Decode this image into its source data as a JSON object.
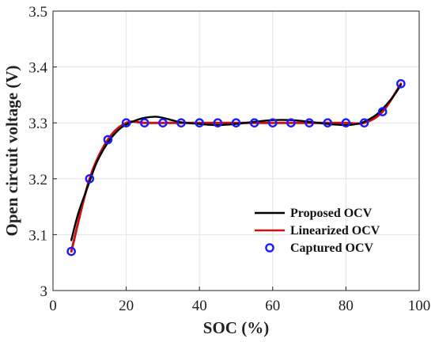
{
  "chart_data": {
    "type": "line",
    "xlabel": "SOC (%)",
    "ylabel": "Open circuit voltage (V)",
    "xlim": [
      0,
      100
    ],
    "ylim": [
      3.0,
      3.5
    ],
    "xticks": [
      0,
      20,
      40,
      60,
      80,
      100
    ],
    "yticks": [
      3,
      3.1,
      3.2,
      3.3,
      3.4,
      3.5
    ],
    "xtick_labels": [
      "0",
      "20",
      "40",
      "60",
      "80",
      "100"
    ],
    "ytick_labels": [
      "3",
      "3.1",
      "3.2",
      "3.3",
      "3.4",
      "3.5"
    ],
    "grid": true,
    "legend_position": "bottom-right",
    "series": [
      {
        "name": "Proposed OCV",
        "style": "line",
        "color": "#000000",
        "x": [
          5,
          7,
          10,
          12,
          15,
          18,
          20,
          22,
          25,
          28,
          30,
          33,
          35,
          40,
          45,
          50,
          55,
          60,
          65,
          70,
          75,
          80,
          83,
          85,
          88,
          90,
          93,
          95
        ],
        "y": [
          3.09,
          3.14,
          3.195,
          3.23,
          3.265,
          3.288,
          3.297,
          3.303,
          3.309,
          3.311,
          3.309,
          3.304,
          3.301,
          3.298,
          3.296,
          3.298,
          3.302,
          3.305,
          3.305,
          3.302,
          3.298,
          3.296,
          3.298,
          3.302,
          3.313,
          3.325,
          3.348,
          3.368
        ]
      },
      {
        "name": "Linearized OCV",
        "style": "line",
        "color": "#cc1111",
        "x": [
          5,
          10,
          15,
          20,
          25,
          30,
          35,
          40,
          45,
          50,
          55,
          60,
          65,
          70,
          75,
          80,
          85,
          90,
          95
        ],
        "y": [
          3.07,
          3.2,
          3.27,
          3.3,
          3.3,
          3.3,
          3.3,
          3.3,
          3.3,
          3.3,
          3.3,
          3.3,
          3.3,
          3.3,
          3.3,
          3.3,
          3.3,
          3.32,
          3.37
        ]
      },
      {
        "name": "Captured OCV",
        "style": "marker",
        "color": "#1a1aff",
        "x": [
          5,
          10,
          15,
          20,
          25,
          30,
          35,
          40,
          45,
          50,
          55,
          60,
          65,
          70,
          75,
          80,
          85,
          90,
          95
        ],
        "y": [
          3.07,
          3.2,
          3.27,
          3.3,
          3.3,
          3.3,
          3.3,
          3.3,
          3.3,
          3.3,
          3.3,
          3.3,
          3.3,
          3.3,
          3.3,
          3.3,
          3.3,
          3.32,
          3.37
        ]
      }
    ]
  }
}
